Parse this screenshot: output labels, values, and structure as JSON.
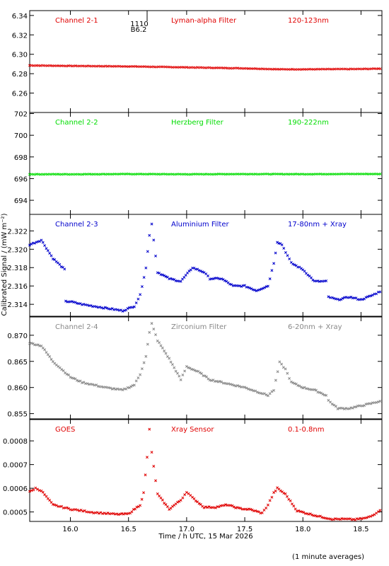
{
  "chart_data": [
    {
      "type": "scatter",
      "panel_labels": [
        "Channel 2-1",
        "Lyman-alpha Filter",
        "120-123nm"
      ],
      "color": "#e00000",
      "ylim": [
        6.24,
        6.345
      ],
      "yticks": [
        "6.26",
        "6.28",
        "6.30",
        "6.32",
        "6.34"
      ],
      "series": [
        {
          "x": [
            15.65,
            16.0,
            16.5,
            17.0,
            17.5,
            17.8,
            18.0,
            18.5,
            18.68
          ],
          "y": [
            6.2885,
            6.288,
            6.2875,
            6.2865,
            6.2855,
            6.2845,
            6.2845,
            6.2848,
            6.2852
          ]
        }
      ]
    },
    {
      "type": "scatter",
      "panel_labels": [
        "Channel 2-2",
        "Herzberg Filter",
        "190-222nm"
      ],
      "color": "#00dd00",
      "ylim": [
        692.7,
        702.1
      ],
      "yticks": [
        "694",
        "696",
        "698",
        "700",
        "702"
      ],
      "series": [
        {
          "x": [
            15.65,
            16.0,
            16.5,
            17.0,
            17.5,
            18.0,
            18.5,
            18.68
          ],
          "y": [
            696.4,
            696.4,
            696.42,
            696.4,
            696.42,
            696.41,
            696.43,
            696.42
          ]
        }
      ]
    },
    {
      "type": "scatter",
      "panel_labels": [
        "Channel 2-3",
        "Aluminium Filter",
        "17-80nm + Xray"
      ],
      "color": "#0000cc",
      "ylim": [
        2.3127,
        2.3238
      ],
      "yticks": [
        "2.314",
        "2.316",
        "2.318",
        "2.320",
        "2.322"
      ],
      "series": [
        {
          "x": [
            15.65,
            15.75,
            15.85,
            15.95,
            15.96,
            16.0,
            16.1,
            16.3,
            16.45,
            16.55,
            16.6,
            16.65,
            16.68,
            16.7,
            16.75,
            16.85,
            16.95,
            17.05,
            17.15,
            17.2,
            17.3,
            17.4,
            17.5,
            17.6,
            17.7,
            17.75,
            17.78,
            17.82,
            17.9,
            18.0,
            18.1,
            18.2,
            18.22,
            18.3,
            18.4,
            18.5,
            18.6,
            18.68
          ],
          "y": [
            2.3205,
            2.321,
            2.319,
            2.3178,
            2.3143,
            2.3143,
            2.314,
            2.3136,
            2.3133,
            2.3138,
            2.315,
            2.318,
            2.3215,
            2.3228,
            2.3175,
            2.3168,
            2.3165,
            2.318,
            2.3175,
            2.3168,
            2.3168,
            2.316,
            2.316,
            2.3155,
            2.316,
            2.3185,
            2.3208,
            2.3205,
            2.3185,
            2.3178,
            2.3165,
            2.3165,
            2.3148,
            2.3145,
            2.3148,
            2.3145,
            2.315,
            2.3155
          ]
        }
      ]
    },
    {
      "type": "scatter",
      "panel_labels": [
        "Channel 2-4",
        "Zirconium Filter",
        "6-20nm + Xray"
      ],
      "color": "#888888",
      "ylim": [
        0.854,
        0.8735
      ],
      "yticks": [
        "0.855",
        "0.860",
        "0.865",
        "0.870"
      ],
      "series": [
        {
          "x": [
            15.65,
            15.75,
            15.85,
            16.0,
            16.1,
            16.3,
            16.45,
            16.55,
            16.6,
            16.65,
            16.68,
            16.7,
            16.75,
            16.85,
            16.95,
            17.0,
            17.1,
            17.2,
            17.3,
            17.5,
            17.7,
            17.75,
            17.8,
            17.85,
            17.9,
            18.0,
            18.1,
            18.2,
            18.22,
            18.3,
            18.4,
            18.5,
            18.6,
            18.68
          ],
          "y": [
            0.8685,
            0.868,
            0.865,
            0.862,
            0.861,
            0.86,
            0.8595,
            0.8605,
            0.8625,
            0.866,
            0.8705,
            0.8722,
            0.869,
            0.8655,
            0.8615,
            0.864,
            0.863,
            0.8615,
            0.861,
            0.86,
            0.8585,
            0.8595,
            0.8648,
            0.8635,
            0.861,
            0.86,
            0.8595,
            0.8585,
            0.8575,
            0.856,
            0.856,
            0.8565,
            0.857,
            0.8575
          ]
        }
      ]
    },
    {
      "type": "scatter",
      "panel_labels": [
        "GOES",
        "Xray Sensor",
        "0.1-0.8nm"
      ],
      "color": "#e00000",
      "ylim": [
        0.00046,
        0.00089
      ],
      "yticks": [
        "0.0005",
        "0.0006",
        "0.0007",
        "0.0008"
      ],
      "series": [
        {
          "x": [
            15.65,
            15.7,
            15.75,
            15.85,
            16.0,
            16.2,
            16.4,
            16.5,
            16.6,
            16.63,
            16.66,
            16.68,
            16.7,
            16.75,
            16.85,
            16.95,
            17.0,
            17.05,
            17.15,
            17.25,
            17.35,
            17.45,
            17.55,
            17.65,
            17.7,
            17.75,
            17.78,
            17.85,
            17.95,
            18.05,
            18.15,
            18.25,
            18.35,
            18.45,
            18.55,
            18.6,
            18.68
          ],
          "y": [
            0.000585,
            0.0006,
            0.00059,
            0.00053,
            0.000512,
            0.000498,
            0.00049,
            0.000492,
            0.00053,
            0.00058,
            0.00073,
            0.00085,
            0.00075,
            0.000575,
            0.000512,
            0.00055,
            0.000585,
            0.00056,
            0.00052,
            0.00052,
            0.00053,
            0.000515,
            0.00051,
            0.000495,
            0.00053,
            0.00058,
            0.0006,
            0.000575,
            0.000505,
            0.000492,
            0.00048,
            0.00047,
            0.00047,
            0.000468,
            0.000475,
            0.000485,
            0.000515
          ]
        }
      ]
    }
  ],
  "x_axis": {
    "xlim": [
      15.65,
      18.68
    ],
    "ticks": [
      "16.0",
      "16.5",
      "17.0",
      "17.5",
      "18.0",
      "18.5"
    ],
    "label": "Time / h UTC, 15 Mar 2026"
  },
  "y_axis_label": "Calibrated Signal / (mW m⁻²)",
  "annotation": {
    "line1": "1110",
    "line2": "B6.2"
  },
  "footnote": "(1 minute averages)"
}
